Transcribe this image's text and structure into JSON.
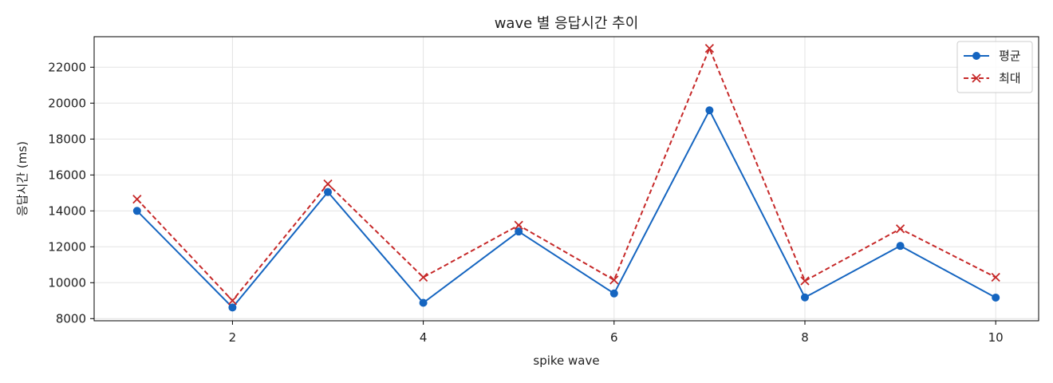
{
  "chart_data": {
    "type": "line",
    "title": "wave 별 응답시간 추이",
    "xlabel": "spike wave",
    "ylabel": "응답시간 (ms)",
    "x": [
      1,
      2,
      3,
      4,
      5,
      6,
      7,
      8,
      9,
      10
    ],
    "xlim": [
      0.55,
      10.45
    ],
    "ylim": [
      7880,
      23700
    ],
    "x_ticks": [
      2,
      4,
      6,
      8,
      10
    ],
    "y_ticks": [
      8000,
      10000,
      12000,
      14000,
      16000,
      18000,
      20000,
      22000
    ],
    "grid": true,
    "legend_position": "top-right",
    "series": [
      {
        "name": "평균",
        "values": [
          14000,
          8620,
          15050,
          8880,
          12850,
          9400,
          19600,
          9180,
          12050,
          9170
        ],
        "color": "#1565c0",
        "line_style": "solid",
        "marker": "circle"
      },
      {
        "name": "최대",
        "values": [
          14650,
          9000,
          15500,
          10300,
          13200,
          10150,
          23050,
          10100,
          13000,
          10300
        ],
        "color": "#c62828",
        "line_style": "dashed",
        "marker": "x"
      }
    ]
  }
}
